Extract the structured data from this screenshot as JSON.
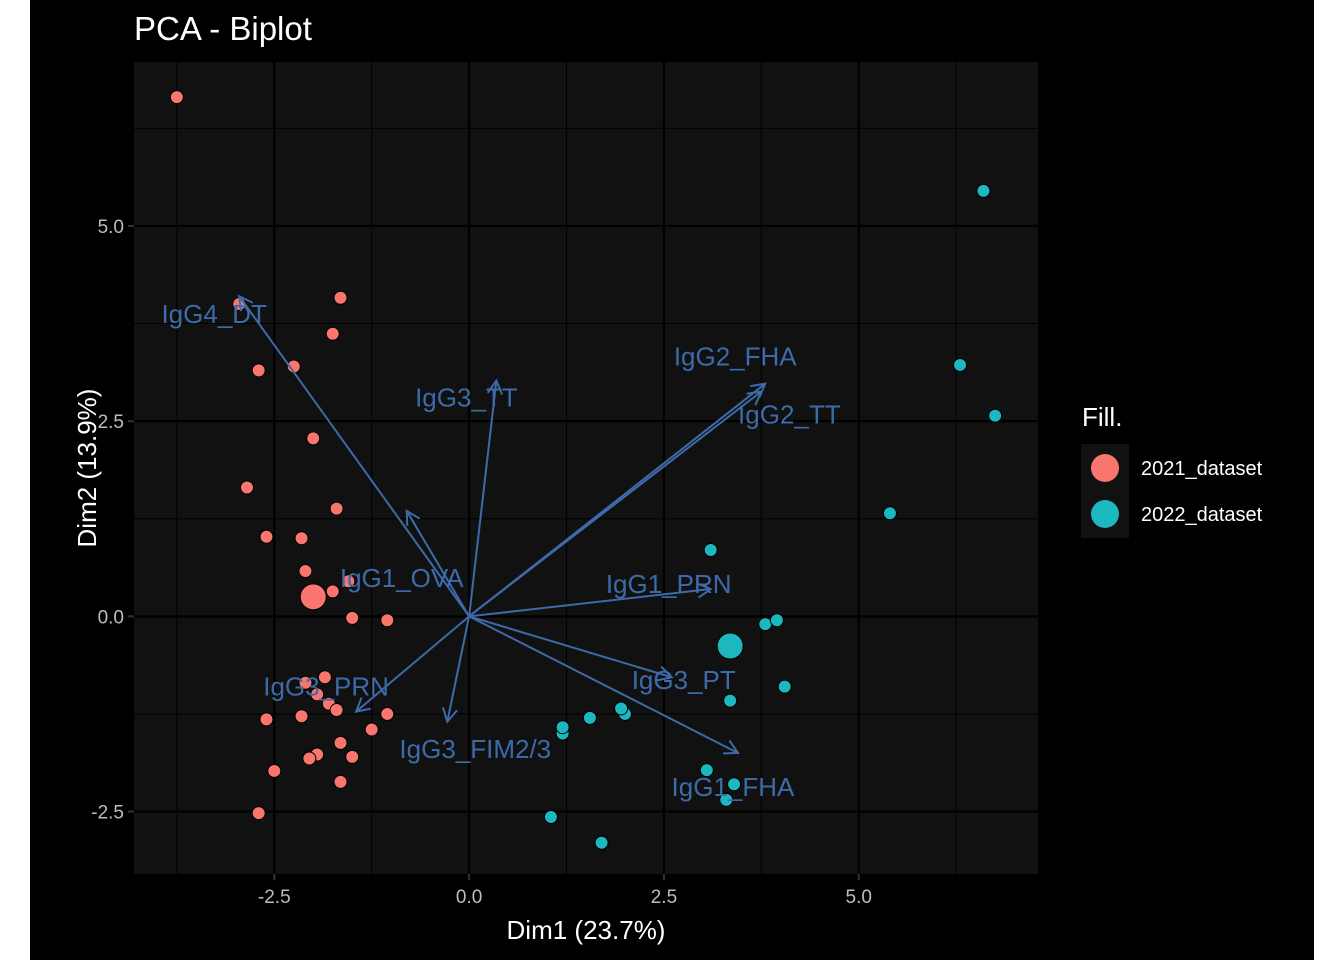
{
  "chart_data": {
    "type": "scatter",
    "title": "PCA - Biplot",
    "xlabel": "Dim1 (23.7%)",
    "ylabel": "Dim2 (13.9%)",
    "xlim": [
      -4.3,
      7.3
    ],
    "ylim": [
      -3.3,
      7.1
    ],
    "xticks": [
      -2.5,
      0.0,
      2.5,
      5.0
    ],
    "xtick_labels": [
      "-2.5",
      "0.0",
      "2.5",
      "5.0"
    ],
    "yticks": [
      -2.5,
      0.0,
      2.5,
      5.0
    ],
    "ytick_labels": [
      "-2.5",
      "0.0",
      "2.5",
      "5.0"
    ],
    "grid": true,
    "legend": {
      "title": "Fill.",
      "position": "right",
      "entries": [
        {
          "name": "2021_dataset",
          "color": "#f8766d"
        },
        {
          "name": "2022_dataset",
          "color": "#1db8bf"
        }
      ]
    },
    "arrow_color": "#3d6aa8",
    "series": [
      {
        "name": "2021_dataset",
        "color": "#f8766d",
        "points": [
          [
            -3.75,
            6.65
          ],
          [
            -2.95,
            4.0
          ],
          [
            -1.65,
            4.08
          ],
          [
            -1.75,
            3.62
          ],
          [
            -2.7,
            3.15
          ],
          [
            -2.25,
            3.2
          ],
          [
            -2.0,
            2.28
          ],
          [
            -2.85,
            1.65
          ],
          [
            -1.7,
            1.38
          ],
          [
            -2.6,
            1.02
          ],
          [
            -2.15,
            1.0
          ],
          [
            -2.1,
            0.58
          ],
          [
            -1.55,
            0.45
          ],
          [
            -1.75,
            0.32
          ],
          [
            -1.5,
            -0.02
          ],
          [
            -1.05,
            -0.05
          ],
          [
            -2.1,
            -0.85
          ],
          [
            -1.85,
            -0.78
          ],
          [
            -1.95,
            -1.0
          ],
          [
            -1.8,
            -1.12
          ],
          [
            -1.7,
            -1.2
          ],
          [
            -1.05,
            -1.25
          ],
          [
            -2.15,
            -1.28
          ],
          [
            -2.6,
            -1.32
          ],
          [
            -1.25,
            -1.45
          ],
          [
            -1.65,
            -1.62
          ],
          [
            -1.95,
            -1.77
          ],
          [
            -2.05,
            -1.82
          ],
          [
            -1.5,
            -1.8
          ],
          [
            -2.5,
            -1.98
          ],
          [
            -1.65,
            -2.12
          ],
          [
            -2.7,
            -2.52
          ]
        ],
        "mean": [
          -2.0,
          0.25
        ]
      },
      {
        "name": "2022_dataset",
        "color": "#1db8bf",
        "points": [
          [
            6.6,
            5.45
          ],
          [
            6.3,
            3.22
          ],
          [
            6.75,
            2.57
          ],
          [
            5.4,
            1.32
          ],
          [
            3.1,
            0.85
          ],
          [
            3.8,
            -0.1
          ],
          [
            3.95,
            -0.05
          ],
          [
            4.05,
            -0.9
          ],
          [
            3.35,
            -1.08
          ],
          [
            2.0,
            -1.25
          ],
          [
            1.95,
            -1.18
          ],
          [
            1.55,
            -1.3
          ],
          [
            1.2,
            -1.5
          ],
          [
            1.2,
            -1.42
          ],
          [
            3.05,
            -1.97
          ],
          [
            3.4,
            -2.15
          ],
          [
            3.3,
            -2.35
          ],
          [
            1.05,
            -2.57
          ],
          [
            1.7,
            -2.9
          ]
        ],
        "mean": [
          3.35,
          -0.38
        ]
      }
    ],
    "variables": [
      {
        "name": "IgG4_DT",
        "end": [
          -2.95,
          4.1
        ]
      },
      {
        "name": "IgG3_TT",
        "end": [
          0.35,
          3.02
        ]
      },
      {
        "name": "IgG2_FHA",
        "end": [
          3.8,
          2.98
        ]
      },
      {
        "name": "IgG2_TT",
        "end": [
          3.75,
          2.88
        ]
      },
      {
        "name": "IgG1_OVA",
        "end": [
          -0.8,
          1.35
        ]
      },
      {
        "name": "IgG1_PRN",
        "end": [
          3.1,
          0.35
        ]
      },
      {
        "name": "IgG3_PT",
        "end": [
          2.6,
          -0.78
        ]
      },
      {
        "name": "IgG1_FHA",
        "end": [
          3.45,
          -1.75
        ]
      },
      {
        "name": "IgG3_PRN",
        "end": [
          -1.45,
          -1.22
        ]
      },
      {
        "name": "IgG3_FIM2/3",
        "end": [
          -0.28,
          -1.35
        ]
      }
    ]
  }
}
